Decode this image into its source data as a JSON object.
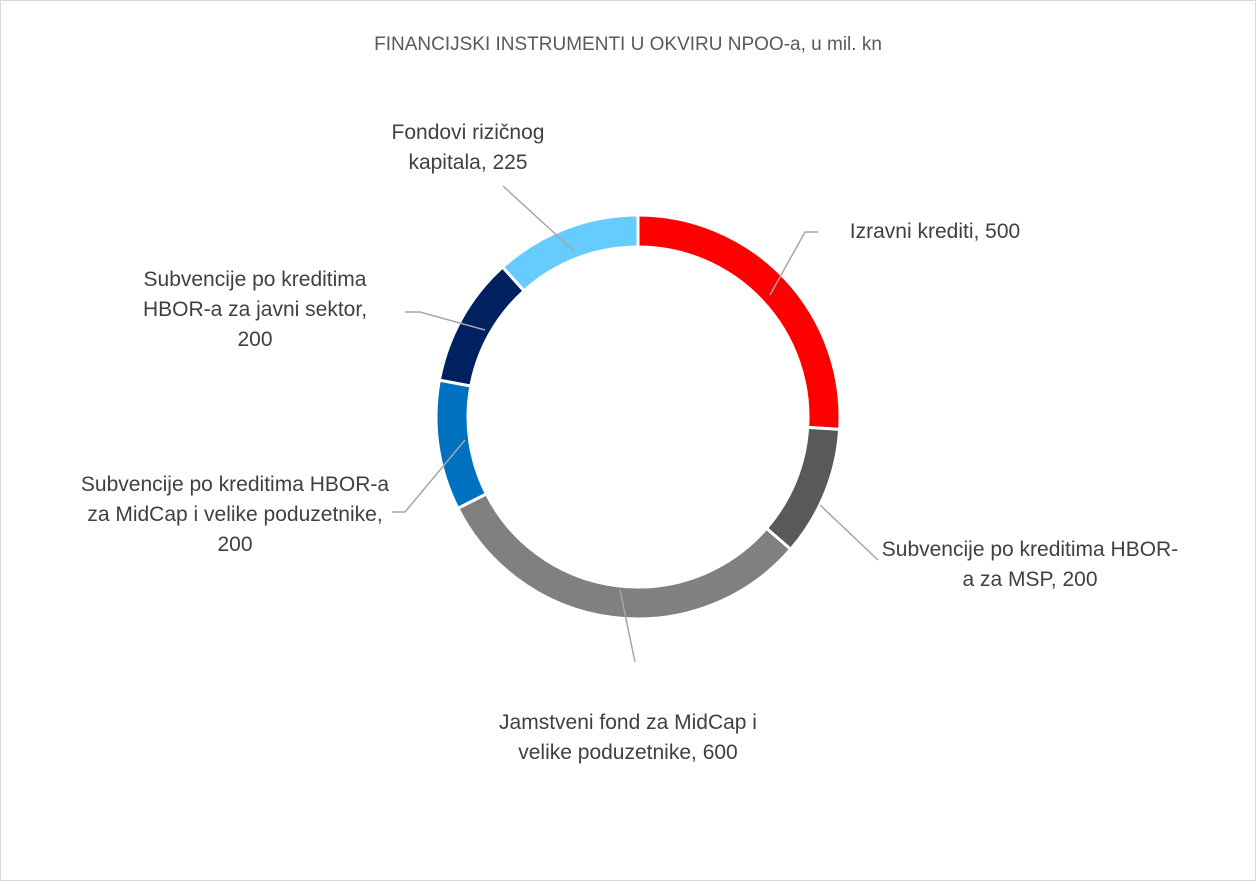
{
  "chart_data": {
    "type": "donut",
    "title": "FINANCIJSKI INSTRUMENTI U OKVIRU NPOO-a, u mil. kn",
    "values": [
      500,
      200,
      600,
      200,
      200,
      225
    ],
    "value_labels": [
      "Izravni krediti, 500",
      "Subvencije po kreditima HBOR-a za MSP, 200",
      "Jamstveni fond za MidCap i velike poduzetnike, 600",
      "Subvencije po kreditima HBOR-a za MidCap i velike poduzetnike, 200",
      "Subvencije po kreditima HBOR-a za javni sektor, 200",
      "Fondovi rizičnog kapitala, 225"
    ],
    "colors": [
      "#ff0000",
      "#595959",
      "#808080",
      "#0070c0",
      "#002060",
      "#66ccff"
    ]
  }
}
